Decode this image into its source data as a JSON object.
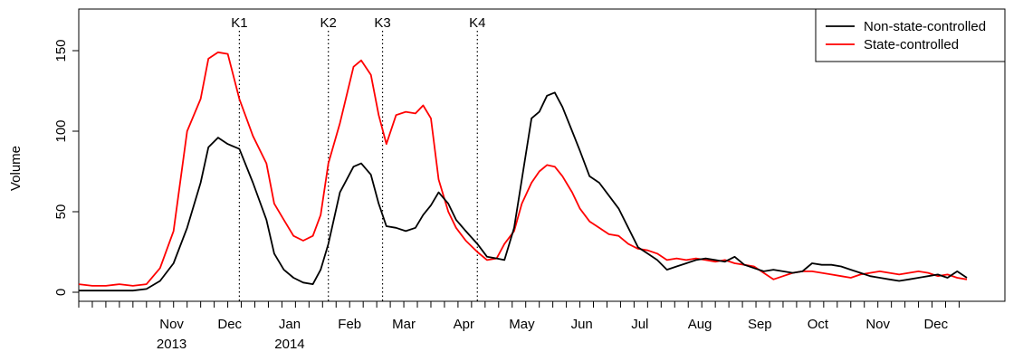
{
  "chart_data": {
    "type": "line",
    "title": "",
    "xlabel": "",
    "ylabel": "Volume",
    "xlim": [
      "2013-09-28",
      "2014-12-31"
    ],
    "ylim": [
      0,
      170
    ],
    "grid": false,
    "legend": {
      "position": "top-right",
      "entries": [
        "Non-state-controlled",
        "State-controlled"
      ]
    },
    "x_ticks": [
      {
        "date": "2013-11-15",
        "label": "Nov",
        "sublabel": "2013"
      },
      {
        "date": "2013-12-15",
        "label": "Dec",
        "sublabel": ""
      },
      {
        "date": "2014-01-15",
        "label": "Jan",
        "sublabel": "2014"
      },
      {
        "date": "2014-02-15",
        "label": "Feb",
        "sublabel": ""
      },
      {
        "date": "2014-03-15",
        "label": "Mar",
        "sublabel": ""
      },
      {
        "date": "2014-04-15",
        "label": "Apr",
        "sublabel": ""
      },
      {
        "date": "2014-05-15",
        "label": "May",
        "sublabel": ""
      },
      {
        "date": "2014-06-15",
        "label": "Jun",
        "sublabel": ""
      },
      {
        "date": "2014-07-15",
        "label": "Jul",
        "sublabel": ""
      },
      {
        "date": "2014-08-15",
        "label": "Aug",
        "sublabel": ""
      },
      {
        "date": "2014-09-15",
        "label": "Sep",
        "sublabel": ""
      },
      {
        "date": "2014-10-15",
        "label": "Oct",
        "sublabel": ""
      },
      {
        "date": "2014-11-15",
        "label": "Nov",
        "sublabel": ""
      },
      {
        "date": "2014-12-15",
        "label": "Dec",
        "sublabel": ""
      }
    ],
    "y_ticks": [
      0,
      50,
      100,
      150
    ],
    "events": [
      {
        "label": "K1",
        "date": "2013-12-20"
      },
      {
        "label": "K2",
        "date": "2014-02-04"
      },
      {
        "label": "K3",
        "date": "2014-03-04"
      },
      {
        "label": "K4",
        "date": "2014-04-22"
      }
    ],
    "series": [
      {
        "name": "Non-state-controlled",
        "color": "#000000",
        "points": [
          [
            "2013-09-28",
            1
          ],
          [
            "2013-10-05",
            1
          ],
          [
            "2013-10-12",
            1
          ],
          [
            "2013-10-19",
            1
          ],
          [
            "2013-10-26",
            1
          ],
          [
            "2013-11-02",
            2
          ],
          [
            "2013-11-09",
            7
          ],
          [
            "2013-11-16",
            18
          ],
          [
            "2013-11-23",
            40
          ],
          [
            "2013-11-30",
            68
          ],
          [
            "2013-12-04",
            90
          ],
          [
            "2013-12-09",
            96
          ],
          [
            "2013-12-14",
            92
          ],
          [
            "2013-12-20",
            89
          ],
          [
            "2013-12-27",
            68
          ],
          [
            "2014-01-03",
            45
          ],
          [
            "2014-01-07",
            24
          ],
          [
            "2014-01-12",
            14
          ],
          [
            "2014-01-17",
            9
          ],
          [
            "2014-01-22",
            6
          ],
          [
            "2014-01-27",
            5
          ],
          [
            "2014-01-31",
            14
          ],
          [
            "2014-02-04",
            30
          ],
          [
            "2014-02-10",
            62
          ],
          [
            "2014-02-17",
            78
          ],
          [
            "2014-02-21",
            80
          ],
          [
            "2014-02-26",
            73
          ],
          [
            "2014-03-02",
            55
          ],
          [
            "2014-03-06",
            41
          ],
          [
            "2014-03-11",
            40
          ],
          [
            "2014-03-16",
            38
          ],
          [
            "2014-03-21",
            40
          ],
          [
            "2014-03-25",
            48
          ],
          [
            "2014-03-29",
            54
          ],
          [
            "2014-04-02",
            62
          ],
          [
            "2014-04-07",
            55
          ],
          [
            "2014-04-11",
            45
          ],
          [
            "2014-04-16",
            38
          ],
          [
            "2014-04-22",
            30
          ],
          [
            "2014-04-27",
            22
          ],
          [
            "2014-05-02",
            21
          ],
          [
            "2014-05-06",
            20
          ],
          [
            "2014-05-11",
            40
          ],
          [
            "2014-05-15",
            70
          ],
          [
            "2014-05-20",
            108
          ],
          [
            "2014-05-24",
            112
          ],
          [
            "2014-05-28",
            122
          ],
          [
            "2014-06-01",
            124
          ],
          [
            "2014-06-05",
            115
          ],
          [
            "2014-06-10",
            100
          ],
          [
            "2014-06-14",
            88
          ],
          [
            "2014-06-19",
            72
          ],
          [
            "2014-06-24",
            68
          ],
          [
            "2014-06-29",
            60
          ],
          [
            "2014-07-04",
            52
          ],
          [
            "2014-07-09",
            40
          ],
          [
            "2014-07-14",
            28
          ],
          [
            "2014-07-19",
            24
          ],
          [
            "2014-07-24",
            20
          ],
          [
            "2014-07-29",
            14
          ],
          [
            "2014-08-03",
            16
          ],
          [
            "2014-08-08",
            18
          ],
          [
            "2014-08-13",
            20
          ],
          [
            "2014-08-18",
            21
          ],
          [
            "2014-08-23",
            20
          ],
          [
            "2014-08-28",
            19
          ],
          [
            "2014-09-02",
            22
          ],
          [
            "2014-09-07",
            17
          ],
          [
            "2014-09-12",
            15
          ],
          [
            "2014-09-17",
            13
          ],
          [
            "2014-09-22",
            14
          ],
          [
            "2014-09-27",
            13
          ],
          [
            "2014-10-02",
            12
          ],
          [
            "2014-10-07",
            13
          ],
          [
            "2014-10-12",
            18
          ],
          [
            "2014-10-17",
            17
          ],
          [
            "2014-10-22",
            17
          ],
          [
            "2014-10-27",
            16
          ],
          [
            "2014-11-01",
            14
          ],
          [
            "2014-11-06",
            12
          ],
          [
            "2014-11-11",
            10
          ],
          [
            "2014-11-16",
            9
          ],
          [
            "2014-11-21",
            8
          ],
          [
            "2014-11-26",
            7
          ],
          [
            "2014-12-01",
            8
          ],
          [
            "2014-12-06",
            9
          ],
          [
            "2014-12-11",
            10
          ],
          [
            "2014-12-16",
            11
          ],
          [
            "2014-12-21",
            9
          ],
          [
            "2014-12-26",
            13
          ],
          [
            "2014-12-31",
            9
          ]
        ]
      },
      {
        "name": "State-controlled",
        "color": "#ff0000",
        "points": [
          [
            "2013-09-28",
            5
          ],
          [
            "2013-10-05",
            4
          ],
          [
            "2013-10-12",
            4
          ],
          [
            "2013-10-19",
            5
          ],
          [
            "2013-10-26",
            4
          ],
          [
            "2013-11-02",
            5
          ],
          [
            "2013-11-09",
            15
          ],
          [
            "2013-11-16",
            38
          ],
          [
            "2013-11-23",
            100
          ],
          [
            "2013-11-30",
            120
          ],
          [
            "2013-12-04",
            145
          ],
          [
            "2013-12-09",
            149
          ],
          [
            "2013-12-14",
            148
          ],
          [
            "2013-12-20",
            120
          ],
          [
            "2013-12-27",
            97
          ],
          [
            "2014-01-03",
            80
          ],
          [
            "2014-01-07",
            55
          ],
          [
            "2014-01-12",
            45
          ],
          [
            "2014-01-17",
            35
          ],
          [
            "2014-01-22",
            32
          ],
          [
            "2014-01-27",
            35
          ],
          [
            "2014-01-31",
            48
          ],
          [
            "2014-02-04",
            80
          ],
          [
            "2014-02-10",
            105
          ],
          [
            "2014-02-17",
            140
          ],
          [
            "2014-02-21",
            144
          ],
          [
            "2014-02-26",
            135
          ],
          [
            "2014-03-02",
            110
          ],
          [
            "2014-03-06",
            92
          ],
          [
            "2014-03-11",
            110
          ],
          [
            "2014-03-16",
            112
          ],
          [
            "2014-03-21",
            111
          ],
          [
            "2014-03-25",
            116
          ],
          [
            "2014-03-29",
            108
          ],
          [
            "2014-04-02",
            70
          ],
          [
            "2014-04-07",
            50
          ],
          [
            "2014-04-11",
            40
          ],
          [
            "2014-04-16",
            32
          ],
          [
            "2014-04-22",
            25
          ],
          [
            "2014-04-27",
            20
          ],
          [
            "2014-05-02",
            21
          ],
          [
            "2014-05-06",
            30
          ],
          [
            "2014-05-11",
            38
          ],
          [
            "2014-05-15",
            55
          ],
          [
            "2014-05-20",
            68
          ],
          [
            "2014-05-24",
            75
          ],
          [
            "2014-05-28",
            79
          ],
          [
            "2014-06-01",
            78
          ],
          [
            "2014-06-05",
            72
          ],
          [
            "2014-06-10",
            62
          ],
          [
            "2014-06-14",
            52
          ],
          [
            "2014-06-19",
            44
          ],
          [
            "2014-06-24",
            40
          ],
          [
            "2014-06-29",
            36
          ],
          [
            "2014-07-04",
            35
          ],
          [
            "2014-07-09",
            30
          ],
          [
            "2014-07-14",
            27
          ],
          [
            "2014-07-19",
            26
          ],
          [
            "2014-07-24",
            24
          ],
          [
            "2014-07-29",
            20
          ],
          [
            "2014-08-03",
            21
          ],
          [
            "2014-08-08",
            20
          ],
          [
            "2014-08-13",
            21
          ],
          [
            "2014-08-18",
            20
          ],
          [
            "2014-08-23",
            19
          ],
          [
            "2014-08-28",
            20
          ],
          [
            "2014-09-02",
            18
          ],
          [
            "2014-09-07",
            17
          ],
          [
            "2014-09-12",
            16
          ],
          [
            "2014-09-17",
            12
          ],
          [
            "2014-09-22",
            8
          ],
          [
            "2014-09-27",
            10
          ],
          [
            "2014-10-02",
            12
          ],
          [
            "2014-10-07",
            13
          ],
          [
            "2014-10-12",
            13
          ],
          [
            "2014-10-17",
            12
          ],
          [
            "2014-10-22",
            11
          ],
          [
            "2014-10-27",
            10
          ],
          [
            "2014-11-01",
            9
          ],
          [
            "2014-11-06",
            11
          ],
          [
            "2014-11-11",
            12
          ],
          [
            "2014-11-16",
            13
          ],
          [
            "2014-11-21",
            12
          ],
          [
            "2014-11-26",
            11
          ],
          [
            "2014-12-01",
            12
          ],
          [
            "2014-12-06",
            13
          ],
          [
            "2014-12-11",
            12
          ],
          [
            "2014-12-16",
            10
          ],
          [
            "2014-12-21",
            11
          ],
          [
            "2014-12-26",
            9
          ],
          [
            "2014-12-31",
            8
          ]
        ]
      }
    ]
  }
}
